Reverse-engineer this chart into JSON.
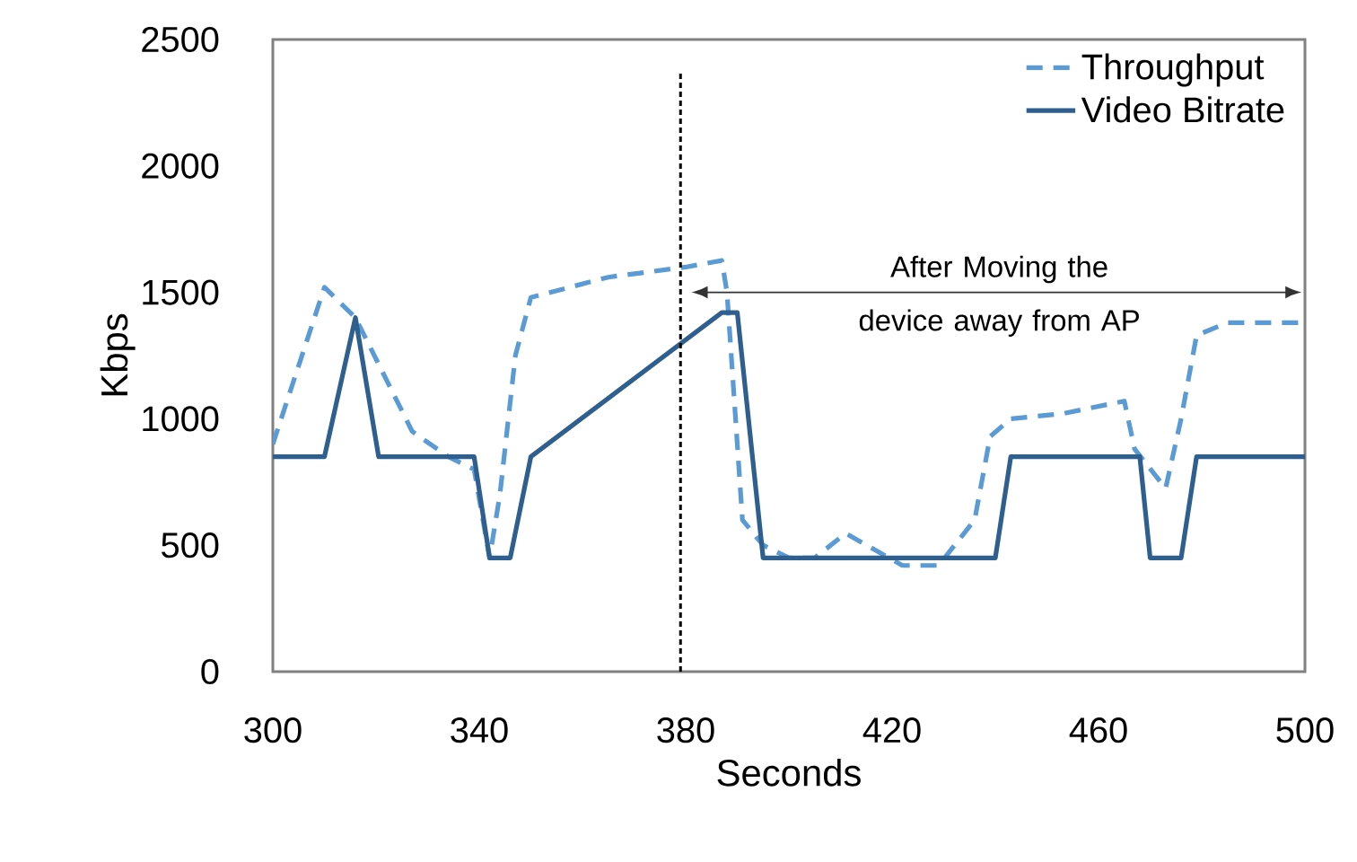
{
  "chart_data": {
    "type": "line",
    "xlabel": "Seconds",
    "ylabel": "Kbps",
    "xlim": [
      300,
      500
    ],
    "ylim": [
      0,
      2500
    ],
    "xticks": [
      300,
      340,
      380,
      420,
      460,
      500
    ],
    "yticks": [
      0,
      500,
      1000,
      1500,
      2000,
      2500
    ],
    "grid": false,
    "legend": "top right",
    "series": [
      {
        "name": "Throughput",
        "color": "#5b9bd5",
        "line_style": "dashed",
        "x": [
          300,
          310,
          316,
          327,
          334,
          339,
          342,
          344,
          347,
          350,
          365,
          380,
          387,
          388,
          391,
          395,
          400,
          405,
          411,
          422,
          429,
          436,
          439,
          443,
          453,
          465,
          467,
          473,
          476,
          479,
          485,
          500
        ],
        "values": [
          900,
          1520,
          1400,
          950,
          850,
          800,
          450,
          700,
          1250,
          1480,
          1560,
          1600,
          1626,
          1500,
          600,
          500,
          450,
          450,
          547,
          420,
          420,
          600,
          930,
          1000,
          1020,
          1070,
          880,
          725,
          1000,
          1330,
          1380,
          1380
        ]
      },
      {
        "name": "Video Bitrate",
        "color": "#2e5f8e",
        "line_style": "solid",
        "x": [
          300,
          310,
          316,
          320.5,
          339,
          342,
          346,
          350,
          387,
          390,
          395,
          440,
          443,
          468,
          470,
          476,
          479,
          500
        ],
        "values": [
          850,
          850,
          1400,
          850,
          850,
          450,
          450,
          850,
          1420,
          1420,
          450,
          450,
          850,
          850,
          450,
          450,
          850,
          850
        ]
      }
    ],
    "ref_lines": [
      {
        "axis": "x",
        "value": 379,
        "color": "#000000",
        "line_style": "dashed"
      }
    ],
    "annotations": [
      "After Moving the device away from AP"
    ]
  }
}
